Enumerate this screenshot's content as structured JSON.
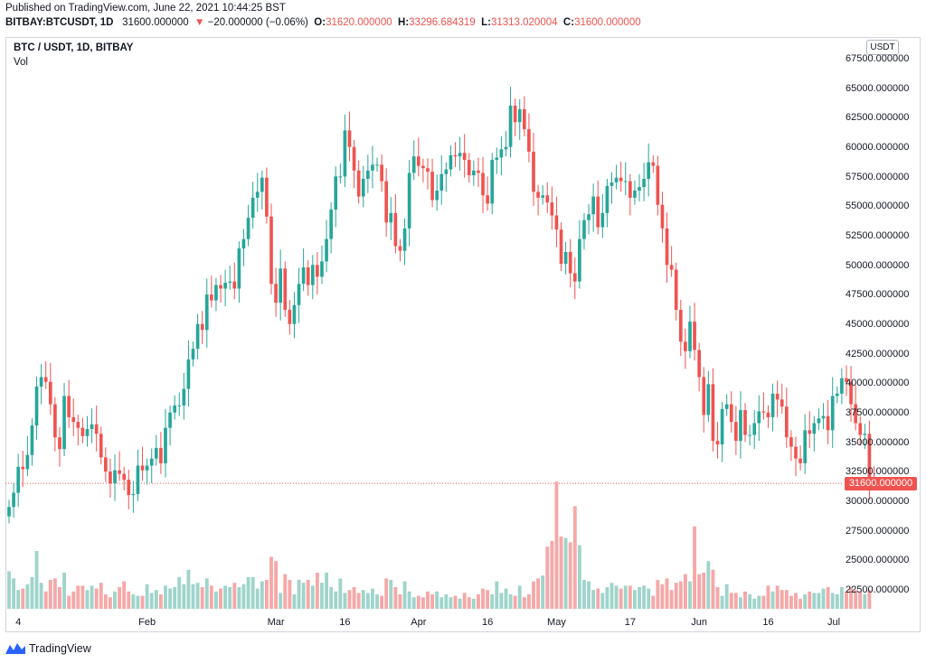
{
  "header": {
    "published": "Published on TradingView.com, June 22, 2021 10:44:25 BST",
    "symbol": "BITBAY:BTCUSDT, 1D",
    "last": "31600.000000",
    "change_arrow": "▼",
    "change": "−20.000000 (−0.06%)",
    "o_label": "O:",
    "o_value": "31620.000000",
    "h_label": "H:",
    "h_value": "33296.684319",
    "l_label": "L:",
    "l_value": "31313.020004",
    "c_label": "C:",
    "c_value": "31600.000000"
  },
  "legend": {
    "title": "BTC / USDT, 1D, BITBAY",
    "volume": "Vol"
  },
  "axis": {
    "currency": "USDT",
    "price_labels": [
      "67500.000000",
      "65000.000000",
      "62500.000000",
      "60000.000000",
      "57500.000000",
      "55000.000000",
      "52500.000000",
      "50000.000000",
      "47500.000000",
      "45000.000000",
      "42500.000000",
      "40000.000000",
      "37500.000000",
      "35000.000000",
      "32500.000000",
      "30000.000000",
      "27500.000000",
      "25000.000000",
      "22500.000000"
    ],
    "last_price_label": "31600.000000",
    "time_labels": [
      "4",
      "Feb",
      "Mar",
      "16",
      "Apr",
      "16",
      "May",
      "17",
      "Jun",
      "16",
      "Jul"
    ]
  },
  "branding": {
    "name": "TradingView",
    "logo_icon": "tradingview-logo-icon"
  },
  "colors": {
    "up": "#26a69a",
    "down": "#ef5350",
    "vol_up": "#9fd4cb",
    "vol_down": "#f5a8a7"
  },
  "chart_data": {
    "type": "candlestick",
    "symbol": "BTC / USDT",
    "interval": "1D",
    "exchange": "BITBAY",
    "ylim": [
      20000,
      69500
    ],
    "last_close": 31600,
    "x_start": "2021-01-02",
    "x_end": "2021-06-22",
    "x_ticks": [
      "2021-01-04",
      "2021-02-01",
      "2021-03-01",
      "2021-03-16",
      "2021-04-01",
      "2021-04-16",
      "2021-05-01",
      "2021-05-17",
      "2021-06-01",
      "2021-06-16",
      "2021-07-01"
    ],
    "closes": [
      29600,
      30800,
      33000,
      32800,
      34000,
      36500,
      39800,
      40600,
      40200,
      38300,
      35500,
      34500,
      39000,
      37200,
      36800,
      36300,
      35600,
      36200,
      36600,
      35800,
      33800,
      32600,
      31600,
      32700,
      32400,
      31900,
      30600,
      30700,
      33100,
      32700,
      33100,
      33700,
      34600,
      33300,
      36300,
      37600,
      38200,
      38200,
      39600,
      42100,
      43000,
      45100,
      44600,
      47600,
      47100,
      48400,
      48100,
      48600,
      48700,
      48100,
      51500,
      52300,
      54100,
      55800,
      56300,
      57500,
      54200,
      48500,
      46900,
      49800,
      46300,
      45100,
      46700,
      48500,
      49900,
      48400,
      50100,
      49100,
      50400,
      52300,
      54800,
      57600,
      57600,
      61500,
      60100,
      58100,
      55900,
      57400,
      58100,
      58600,
      58600,
      57200,
      53700,
      54500,
      51700,
      51300,
      53200,
      57900,
      59300,
      58500,
      58300,
      58000,
      55600,
      56400,
      57800,
      58200,
      59400,
      59300,
      59600,
      59000,
      57700,
      58100,
      57900,
      56000,
      55300,
      59000,
      59200,
      59900,
      60100,
      63600,
      62200,
      63300,
      61600,
      59700,
      56300,
      55800,
      56000,
      55400,
      54300,
      53100,
      50200,
      51200,
      49400,
      48700,
      52300,
      53900,
      54400,
      55900,
      53300,
      54500,
      56800,
      57100,
      57500,
      57200,
      57200,
      55800,
      56400,
      56700,
      57400,
      58800,
      58500,
      55200,
      53200,
      50100,
      49700,
      46300,
      43600,
      42800,
      45300,
      42900,
      40600,
      37400,
      40000,
      35200,
      34900,
      37900,
      38300,
      36800,
      35200,
      37800,
      35700,
      35700,
      36700,
      37700,
      37600,
      37200,
      39200,
      38700,
      38100,
      35500,
      34700,
      33700,
      33300,
      36100,
      35800,
      36700,
      37100,
      37300,
      36100,
      39000,
      39200,
      40500,
      40200,
      38300,
      36700,
      35700,
      35800,
      31700,
      31600
    ],
    "volume_scale": [
      0.26,
      0.21,
      0.13,
      0.14,
      0.17,
      0.22,
      0.4,
      0.18,
      0.12,
      0.2,
      0.21,
      0.15,
      0.25,
      0.09,
      0.12,
      0.16,
      0.16,
      0.13,
      0.16,
      0.14,
      0.18,
      0.1,
      0.08,
      0.12,
      0.15,
      0.19,
      0.12,
      0.1,
      0.09,
      0.09,
      0.17,
      0.11,
      0.13,
      0.1,
      0.16,
      0.14,
      0.15,
      0.22,
      0.17,
      0.27,
      0.17,
      0.18,
      0.15,
      0.21,
      0.16,
      0.12,
      0.14,
      0.16,
      0.15,
      0.18,
      0.15,
      0.17,
      0.22,
      0.22,
      0.14,
      0.19,
      0.2,
      0.36,
      0.33,
      0.11,
      0.24,
      0.2,
      0.1,
      0.2,
      0.18,
      0.2,
      0.16,
      0.25,
      0.18,
      0.25,
      0.15,
      0.12,
      0.21,
      0.11,
      0.13,
      0.15,
      0.11,
      0.13,
      0.11,
      0.14,
      0.1,
      0.09,
      0.21,
      0.2,
      0.15,
      0.1,
      0.19,
      0.12,
      0.08,
      0.09,
      0.08,
      0.12,
      0.1,
      0.12,
      0.08,
      0.1,
      0.08,
      0.09,
      0.07,
      0.11,
      0.08,
      0.07,
      0.1,
      0.14,
      0.13,
      0.1,
      0.19,
      0.11,
      0.14,
      0.1,
      0.09,
      0.16,
      0.08,
      0.1,
      0.19,
      0.21,
      0.23,
      0.43,
      0.47,
      0.88,
      0.5,
      0.49,
      0.46,
      0.71,
      0.44,
      0.2,
      0.19,
      0.13,
      0.14,
      0.11,
      0.15,
      0.18,
      0.16,
      0.14,
      0.16,
      0.16,
      0.13,
      0.15,
      0.16,
      0.14,
      0.09,
      0.2,
      0.17,
      0.21,
      0.13,
      0.18,
      0.19,
      0.24,
      0.19,
      0.57,
      0.24,
      0.25,
      0.33,
      0.27,
      0.15,
      0.09,
      0.17,
      0.11,
      0.11,
      0.08,
      0.12,
      0.1,
      0.07,
      0.09,
      0.09,
      0.16,
      0.12,
      0.16,
      0.13,
      0.13,
      0.09,
      0.11,
      0.07,
      0.1,
      0.12,
      0.11,
      0.11,
      0.14,
      0.15,
      0.11,
      0.1,
      0.15,
      0.12,
      0.15,
      0.13,
      0.12,
      0.1,
      0.13
    ],
    "volume_note": "relative volume, fraction of the tallest bar"
  }
}
